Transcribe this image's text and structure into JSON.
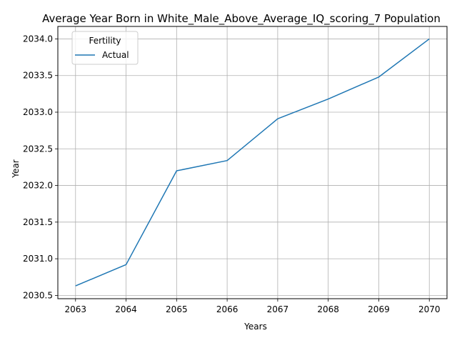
{
  "chart_data": {
    "type": "line",
    "title": "Average Year Born in White_Male_Above_Average_IQ_scoring_7 Population",
    "xlabel": "Years",
    "ylabel": "Year",
    "x": [
      2063,
      2064,
      2065,
      2066,
      2067,
      2068,
      2069,
      2070
    ],
    "xticks": [
      "2063",
      "2064",
      "2065",
      "2066",
      "2067",
      "2068",
      "2069",
      "2070"
    ],
    "yticks": [
      "2030.5",
      "2031.0",
      "2031.5",
      "2032.0",
      "2032.5",
      "2033.0",
      "2033.5",
      "2034.0"
    ],
    "ylim": [
      2030.455,
      2034.17
    ],
    "xlim": [
      2062.65,
      2070.35
    ],
    "grid": true,
    "legend": {
      "title": "Fertility",
      "placement": "upper-left"
    },
    "series": [
      {
        "name": "Actual",
        "color": "#1f77b4",
        "values": [
          2030.63,
          2030.92,
          2032.2,
          2032.34,
          2032.91,
          2033.18,
          2033.48,
          2034.0
        ]
      }
    ]
  }
}
